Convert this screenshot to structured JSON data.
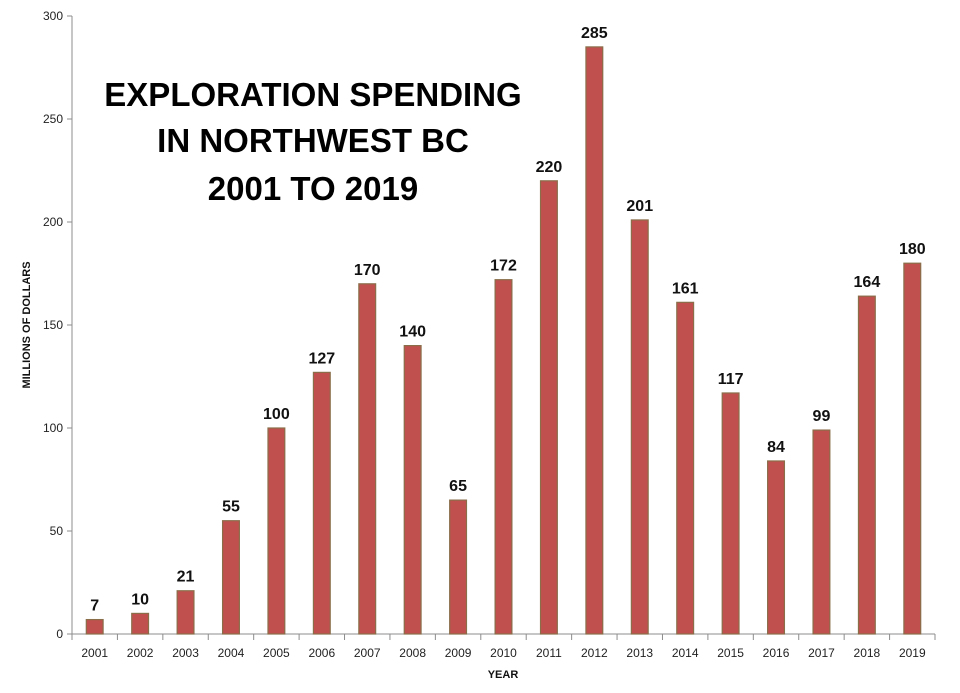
{
  "chart_data": {
    "type": "bar",
    "title_lines": [
      "EXPLORATION SPENDING",
      "IN NORTHWEST BC",
      "2001 TO 2019"
    ],
    "xlabel": "YEAR",
    "ylabel": "MILLIONS OF DOLLARS",
    "ylim": [
      0,
      300
    ],
    "yticks": [
      "0",
      "50",
      "100",
      "150",
      "200",
      "250",
      "300"
    ],
    "categories": [
      "2001",
      "2002",
      "2003",
      "2004",
      "2005",
      "2006",
      "2007",
      "2008",
      "2009",
      "2010",
      "2011",
      "2012",
      "2013",
      "2014",
      "2015",
      "2016",
      "2017",
      "2018",
      "2019"
    ],
    "values": [
      7,
      10,
      21,
      55,
      100,
      127,
      170,
      140,
      65,
      172,
      220,
      285,
      201,
      161,
      117,
      84,
      99,
      164,
      180
    ],
    "data_labels": [
      "7",
      "10",
      "21",
      "55",
      "100",
      "127",
      "170",
      "140",
      "65",
      "172",
      "220",
      "285",
      "201",
      "161",
      "117",
      "84",
      "99",
      "164",
      "180"
    ],
    "grid": false,
    "legend": "none",
    "colors": {
      "bar": "#c0504d",
      "bar_edge": "#8a6e4a",
      "axis": "#8c8c8c"
    }
  }
}
